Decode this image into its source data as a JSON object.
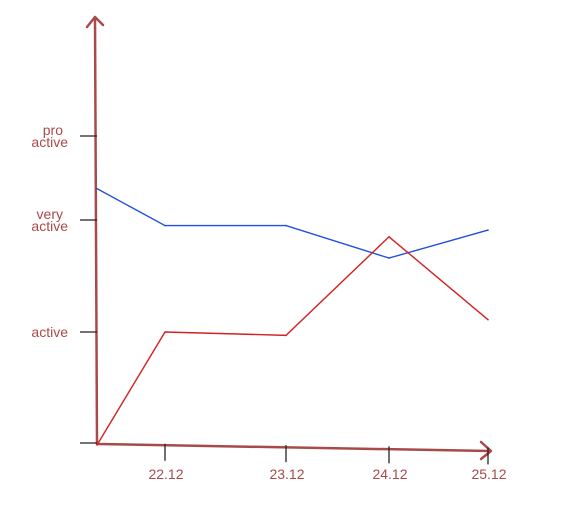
{
  "chart_data": {
    "type": "line",
    "title": "",
    "xlabel": "",
    "ylabel": "",
    "x_ticks": [
      "22.12",
      "23.12",
      "24.12",
      "25.12"
    ],
    "y_ticks": [
      {
        "value": 1,
        "lines": [
          "active"
        ]
      },
      {
        "value": 2,
        "lines": [
          "very",
          "active"
        ]
      },
      {
        "value": 2.75,
        "lines": [
          "pro",
          "active"
        ]
      }
    ],
    "ylim": [
      0,
      3.6
    ],
    "grid": false,
    "legend": "none",
    "colors": {
      "axis": "#a84a4a",
      "tick": "#222222",
      "label": "#a84a4a",
      "series_blue": "#2050e0",
      "series_red": "#d42020"
    },
    "series": [
      {
        "color": "#2050e0",
        "points": [
          {
            "x": "start",
            "y": 2.28
          },
          {
            "x": "22.12",
            "y": 1.95
          },
          {
            "x": "23.12",
            "y": 1.95
          },
          {
            "x": "24.12",
            "y": 1.66
          },
          {
            "x": "25.12",
            "y": 1.91
          }
        ]
      },
      {
        "color": "#d42020",
        "points": [
          {
            "x": "start",
            "y": 0
          },
          {
            "x": "22.12",
            "y": 1.0
          },
          {
            "x": "23.12",
            "y": 0.97
          },
          {
            "x": "24.12",
            "y": 1.85
          },
          {
            "x": "25.12",
            "y": 1.11
          }
        ]
      }
    ]
  }
}
